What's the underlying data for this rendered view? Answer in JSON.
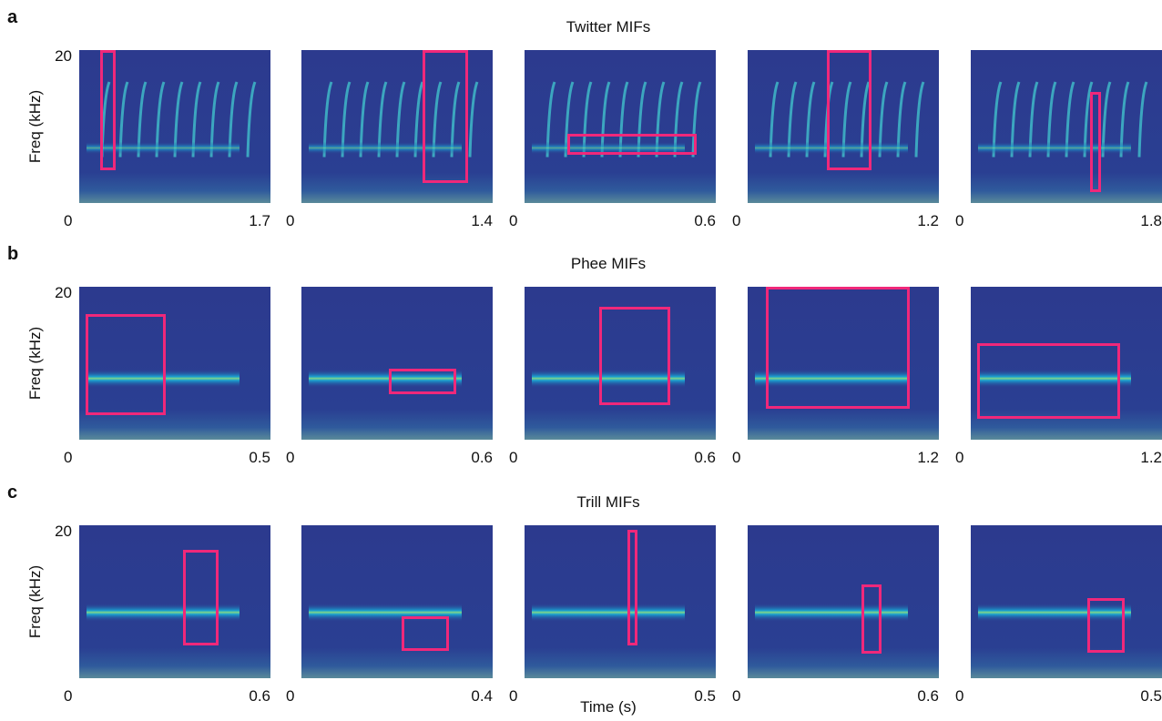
{
  "rows": [
    {
      "label": "a",
      "title": "Twitter MIFs",
      "y_label": "Freq (kHz)",
      "y_tick": "20",
      "panels": [
        {
          "x_start": "0",
          "x_end": "1.7"
        },
        {
          "x_start": "0",
          "x_end": "1.4"
        },
        {
          "x_start": "0",
          "x_end": "0.6"
        },
        {
          "x_start": "0",
          "x_end": "1.2"
        },
        {
          "x_start": "0",
          "x_end": "1.8"
        }
      ]
    },
    {
      "label": "b",
      "title": "Phee MIFs",
      "y_label": "Freq (kHz)",
      "y_tick": "20",
      "panels": [
        {
          "x_start": "0",
          "x_end": "0.5"
        },
        {
          "x_start": "0",
          "x_end": "0.6"
        },
        {
          "x_start": "0",
          "x_end": "0.6"
        },
        {
          "x_start": "0",
          "x_end": "1.2"
        },
        {
          "x_start": "0",
          "x_end": "1.2"
        }
      ]
    },
    {
      "label": "c",
      "title": "Trill MIFs",
      "y_label": "Freq (kHz)",
      "y_tick": "20",
      "panels": [
        {
          "x_start": "0",
          "x_end": "0.6"
        },
        {
          "x_start": "0",
          "x_end": "0.4"
        },
        {
          "x_start": "0",
          "x_end": "0.5"
        },
        {
          "x_start": "0",
          "x_end": "0.6"
        },
        {
          "x_start": "0",
          "x_end": "0.5"
        }
      ]
    }
  ],
  "x_label": "Time (s)"
}
